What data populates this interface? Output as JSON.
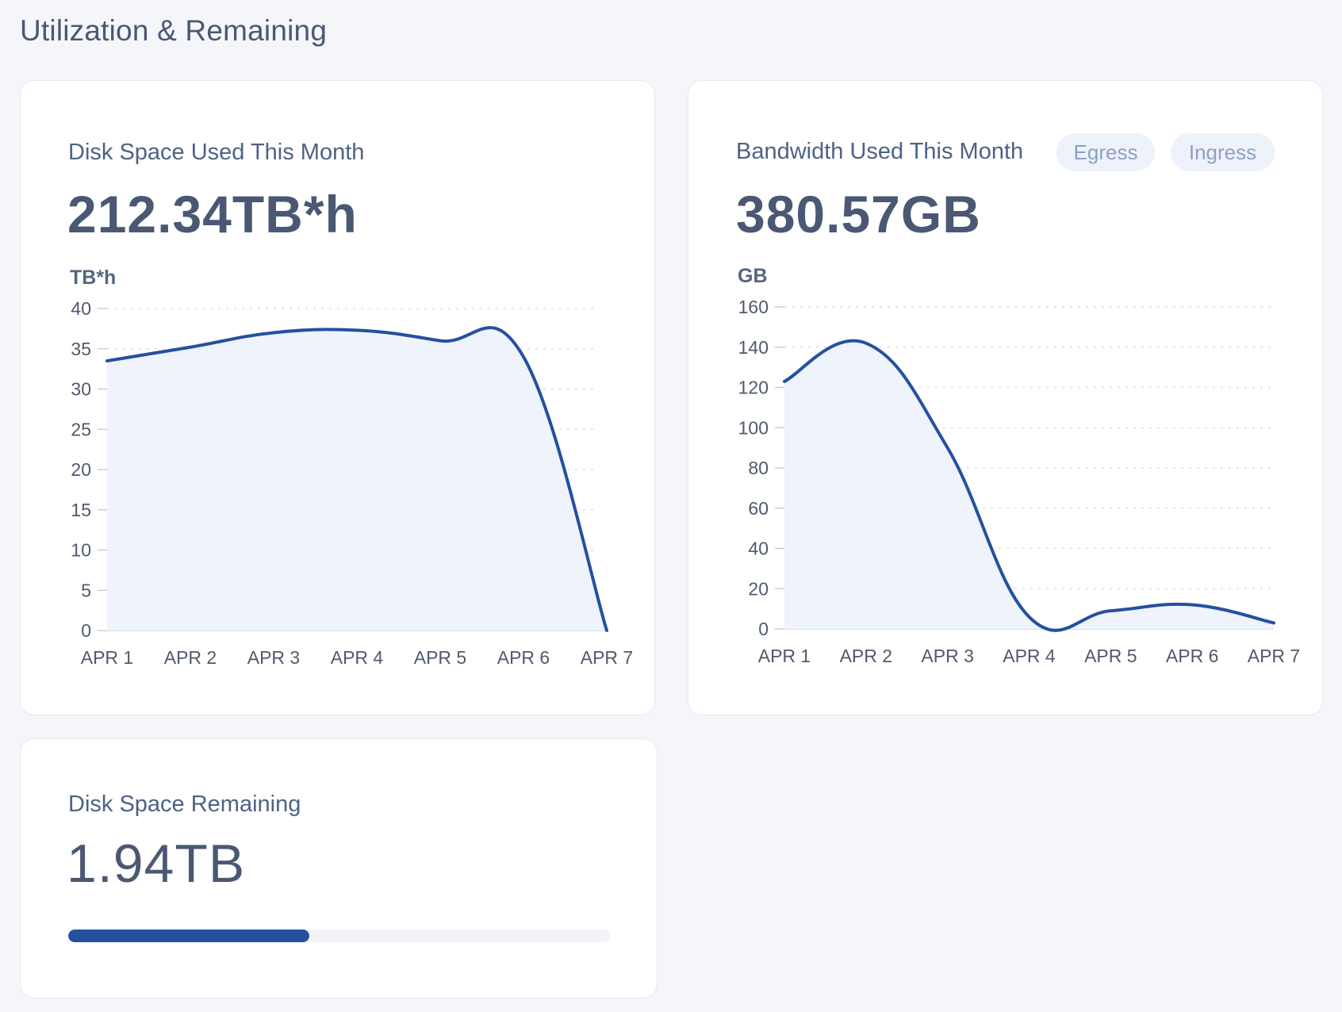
{
  "page": {
    "title": "Utilization & Remaining"
  },
  "colors": {
    "line": "#2550a0",
    "area": "#eff3fb",
    "grid": "#d9dde5",
    "track": "#f2f3f7"
  },
  "disk_used": {
    "title": "Disk Space Used This Month",
    "value": "212.34TB*h",
    "unit": "TB*h"
  },
  "bandwidth": {
    "title": "Bandwidth Used This Month",
    "value": "380.57GB",
    "unit": "GB",
    "toggle": [
      "Egress",
      "Ingress"
    ]
  },
  "disk_remaining": {
    "title": "Disk Space Remaining",
    "value": "1.94TB",
    "progress": 0.445
  },
  "chart_data": [
    {
      "type": "area",
      "categories": [
        "APR 1",
        "APR 2",
        "APR 3",
        "APR 4",
        "APR 5",
        "APR 6",
        "APR 7"
      ],
      "yticks": [
        0,
        5,
        10,
        15,
        20,
        25,
        30,
        35,
        40
      ],
      "ylim": [
        0,
        40
      ],
      "ylabel": "TB*h",
      "grid": true,
      "series": [
        {
          "values": [
            33.5,
            35.2,
            37.0,
            37.3,
            36.0,
            34.0,
            0
          ]
        }
      ]
    },
    {
      "type": "area",
      "categories": [
        "APR 1",
        "APR 2",
        "APR 3",
        "APR 4",
        "APR 5",
        "APR 6",
        "APR 7"
      ],
      "yticks": [
        0,
        20,
        40,
        60,
        80,
        100,
        120,
        140,
        160
      ],
      "ylim": [
        0,
        160
      ],
      "ylabel": "GB",
      "grid": true,
      "series": [
        {
          "values": [
            123,
            142,
            90,
            6,
            9,
            12,
            3
          ]
        }
      ]
    }
  ]
}
